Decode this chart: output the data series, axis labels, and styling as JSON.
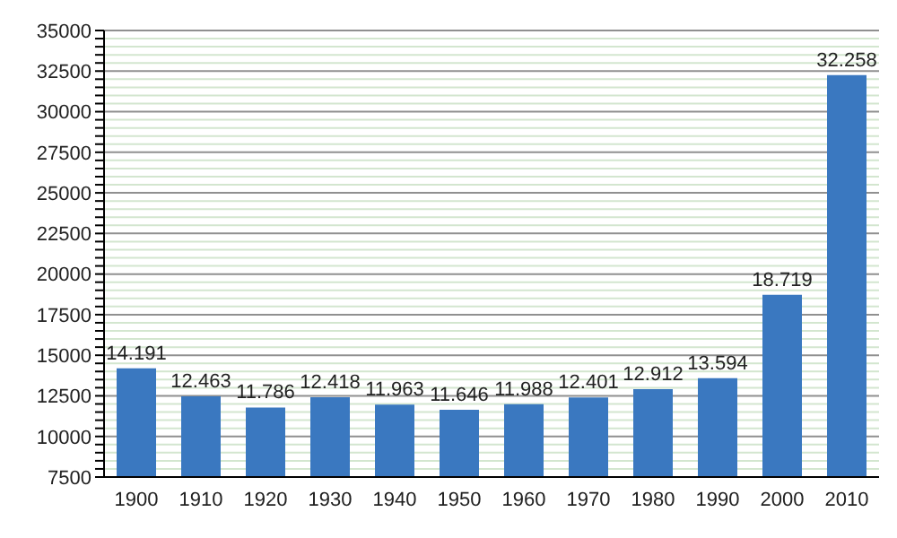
{
  "chart_data": {
    "type": "bar",
    "categories": [
      "1900",
      "1910",
      "1920",
      "1930",
      "1940",
      "1950",
      "1960",
      "1970",
      "1980",
      "1990",
      "2000",
      "2010"
    ],
    "values": [
      14191,
      12463,
      11786,
      12418,
      11963,
      11646,
      11988,
      12401,
      12912,
      13594,
      18719,
      32258
    ],
    "value_labels": [
      "14.191",
      "12.463",
      "11.786",
      "12.418",
      "11.963",
      "11.646",
      "11.988",
      "12.401",
      "12.912",
      "13.594",
      "18.719",
      "32.258"
    ],
    "color": "#3a78c0",
    "ylim": [
      7500,
      35000
    ],
    "yticks": [
      7500,
      {
        "value": 8000,
        "label": null
      },
      {
        "value": 8500,
        "label": null
      },
      {
        "value": 9000,
        "label": null
      },
      {
        "value": 9500,
        "label": null
      },
      10000,
      {
        "value": 10500,
        "label": null
      },
      {
        "value": 11000,
        "label": null
      },
      {
        "value": 11500,
        "label": null
      },
      {
        "value": 12000,
        "label": null
      },
      12500,
      {
        "value": 13000,
        "label": null
      },
      {
        "value": 13500,
        "label": null
      },
      {
        "value": 14000,
        "label": null
      },
      {
        "value": 14500,
        "label": null
      },
      15000,
      {
        "value": 15500,
        "label": null
      },
      {
        "value": 16000,
        "label": null
      },
      {
        "value": 16500,
        "label": null
      },
      {
        "value": 17000,
        "label": null
      },
      17500,
      {
        "value": 18000,
        "label": null
      },
      {
        "value": 18500,
        "label": null
      },
      {
        "value": 19000,
        "label": null
      },
      {
        "value": 19500,
        "label": null
      },
      20000,
      {
        "value": 20500,
        "label": null
      },
      {
        "value": 21000,
        "label": null
      },
      {
        "value": 21500,
        "label": null
      },
      {
        "value": 22000,
        "label": null
      },
      22500,
      {
        "value": 23000,
        "label": null
      },
      {
        "value": 23500,
        "label": null
      },
      {
        "value": 24000,
        "label": null
      },
      {
        "value": 24500,
        "label": null
      },
      25000,
      {
        "value": 25500,
        "label": null
      },
      {
        "value": 26000,
        "label": null
      },
      {
        "value": 26500,
        "label": null
      },
      {
        "value": 27000,
        "label": null
      },
      27500,
      {
        "value": 28000,
        "label": null
      },
      {
        "value": 28500,
        "label": null
      },
      {
        "value": 29000,
        "label": null
      },
      {
        "value": 29500,
        "label": null
      },
      30000,
      {
        "value": 30500,
        "label": null
      },
      {
        "value": 31000,
        "label": null
      },
      {
        "value": 31500,
        "label": null
      },
      {
        "value": 32000,
        "label": null
      },
      32500,
      {
        "value": 33000,
        "label": null
      },
      {
        "value": 33500,
        "label": null
      },
      {
        "value": 34000,
        "label": null
      },
      {
        "value": 34500,
        "label": null
      },
      35000
    ],
    "grid": "y"
  }
}
